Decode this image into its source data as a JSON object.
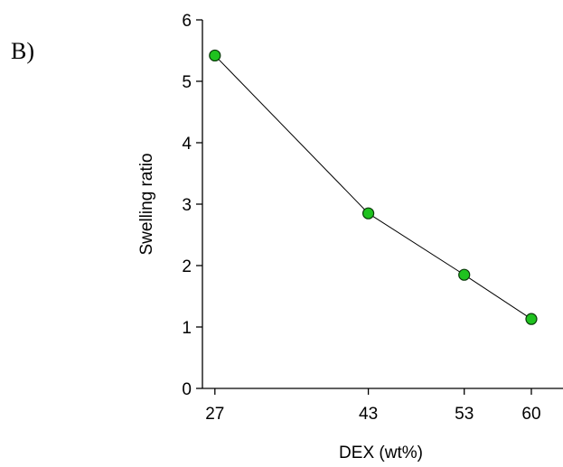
{
  "panel_label": "B)",
  "chart_data": {
    "type": "line",
    "title": "",
    "xlabel": "DEX (wt%)",
    "ylabel": "Swelling ratio",
    "x": [
      27,
      43,
      53,
      60
    ],
    "x_ticks": [
      "27",
      "43",
      "53",
      "60"
    ],
    "xlim": [
      25.7,
      63.3
    ],
    "ylim": [
      0,
      6
    ],
    "y_ticks": [
      "0",
      "1",
      "2",
      "3",
      "4",
      "5",
      "6"
    ],
    "series": [
      {
        "values": [
          5.42,
          2.85,
          1.85,
          1.13
        ]
      }
    ],
    "grid": false,
    "colors": {
      "marker_fill": "#1fc21f",
      "marker_stroke": "#0a3a0a",
      "line": "#000000",
      "axis": "#000000"
    }
  }
}
